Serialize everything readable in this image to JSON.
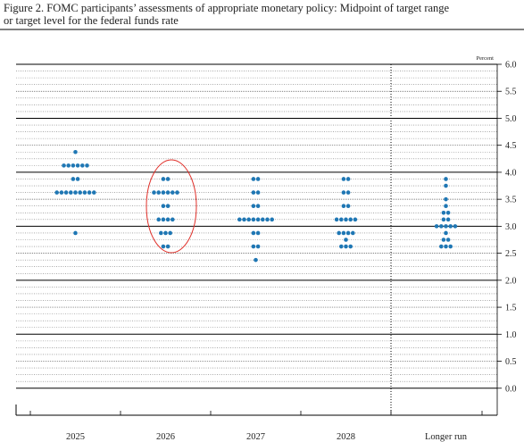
{
  "chart_data": {
    "type": "dot",
    "title_lines": [
      "Figure 2. FOMC participants’ assessments of appropriate monetary policy: Midpoint of target range",
      "or target level for the federal funds rate"
    ],
    "y_unit": "Percent",
    "categories": [
      "2025",
      "2026",
      "2027",
      "2028",
      "Longer run"
    ],
    "color": "#1f77b4",
    "dots": [
      [
        4.375,
        4.125,
        4.125,
        4.125,
        4.125,
        4.125,
        4.125,
        3.875,
        3.875,
        3.625,
        3.625,
        3.625,
        3.625,
        3.625,
        3.625,
        3.625,
        3.625,
        3.625,
        2.875
      ],
      [
        3.875,
        3.875,
        3.625,
        3.625,
        3.625,
        3.625,
        3.625,
        3.625,
        3.375,
        3.375,
        3.125,
        3.125,
        3.125,
        3.125,
        2.875,
        2.875,
        2.875,
        2.625,
        2.625
      ],
      [
        3.875,
        3.875,
        3.625,
        3.625,
        3.375,
        3.375,
        3.125,
        3.125,
        3.125,
        3.125,
        3.125,
        3.125,
        3.125,
        3.125,
        2.875,
        2.875,
        2.625,
        2.625,
        2.375
      ],
      [
        3.875,
        3.875,
        3.625,
        3.625,
        3.375,
        3.375,
        3.125,
        3.125,
        3.125,
        3.125,
        3.125,
        2.875,
        2.875,
        2.875,
        2.875,
        2.75,
        2.625,
        2.625,
        2.625
      ],
      [
        3.875,
        3.75,
        3.5,
        3.375,
        3.25,
        3.25,
        3.125,
        3.125,
        3,
        3,
        3,
        3,
        3,
        2.875,
        2.75,
        2.75,
        2.625,
        2.625,
        2.625
      ]
    ],
    "ylim": [
      -0.5,
      6.0
    ],
    "yticks": [
      {
        "value": 0,
        "label": "0.0"
      },
      0.5,
      {
        "value": 1,
        "label": "1.0"
      },
      1.5,
      {
        "value": 2,
        "label": "2.0"
      },
      2.5,
      {
        "value": 3,
        "label": "3.0"
      },
      3.5,
      {
        "value": 4,
        "label": "4.0"
      },
      4.5,
      {
        "value": 5,
        "label": "5.0"
      },
      5.5,
      {
        "value": 6,
        "label": "6.0"
      }
    ],
    "grid": true
  }
}
